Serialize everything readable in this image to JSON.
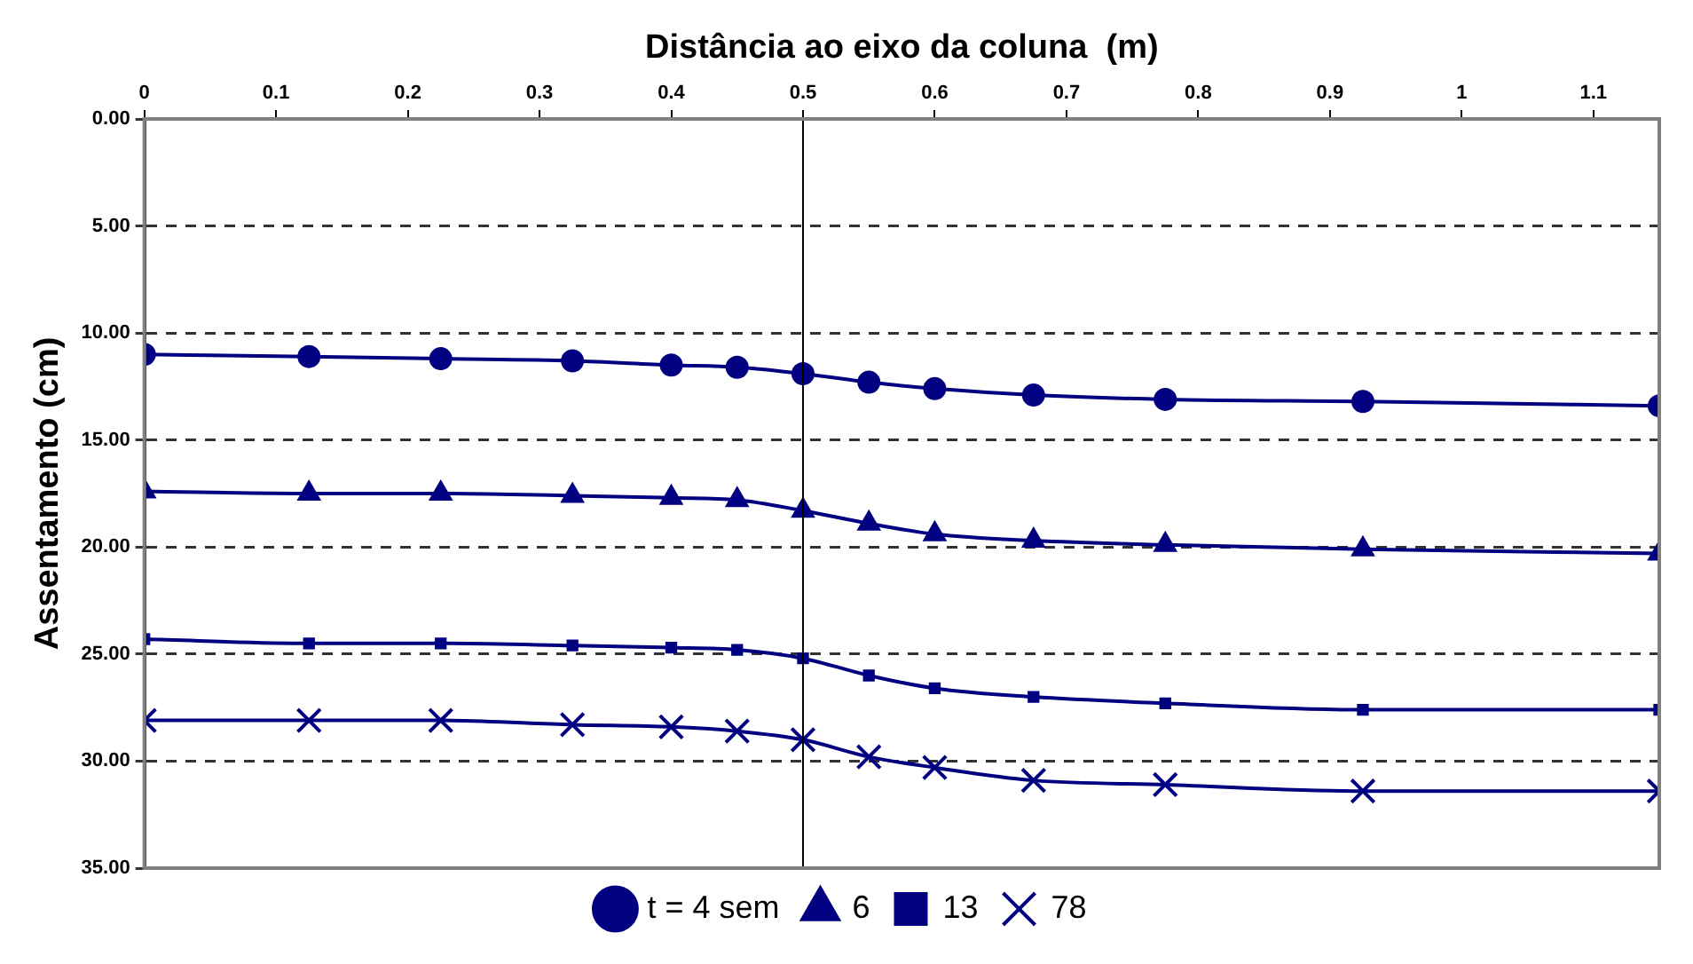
{
  "chart_data": {
    "type": "line",
    "xlabel": "Distância ao eixo da coluna  (m)",
    "ylabel": "Assentamento (cm)",
    "x": [
      0,
      0.125,
      0.225,
      0.325,
      0.4,
      0.45,
      0.5,
      0.55,
      0.6,
      0.675,
      0.775,
      0.925,
      1.15
    ],
    "xlim": [
      0,
      1.15
    ],
    "xticks": [
      0,
      0.1,
      0.2,
      0.3,
      0.4,
      0.5,
      0.6,
      0.7,
      0.8,
      0.9,
      1,
      1.1
    ],
    "ylim": [
      35,
      0
    ],
    "yticks": [
      {
        "value": 0,
        "label": "0.00"
      },
      {
        "value": 5,
        "label": "5.00"
      },
      {
        "value": 10,
        "label": "10.00"
      },
      {
        "value": 15,
        "label": "15.00"
      },
      {
        "value": 20,
        "label": "20.00"
      },
      {
        "value": 25,
        "label": "25.00"
      },
      {
        "value": 30,
        "label": "30.00"
      },
      {
        "value": 35,
        "label": "35.00"
      }
    ],
    "grid": "y",
    "legend": "bottom",
    "ref_lines": [
      {
        "axis": "x",
        "value": 0.5,
        "color": "#000000"
      }
    ],
    "series": [
      {
        "name": "t = 4 sem",
        "color": "#000080",
        "marker": "circle",
        "values": [
          11.0,
          11.1,
          11.2,
          11.3,
          11.5,
          11.6,
          11.9,
          12.3,
          12.6,
          12.9,
          13.1,
          13.2,
          13.4
        ]
      },
      {
        "name": "6",
        "color": "#000080",
        "marker": "triangle",
        "values": [
          17.4,
          17.5,
          17.5,
          17.6,
          17.7,
          17.8,
          18.3,
          18.9,
          19.4,
          19.7,
          19.9,
          20.1,
          20.3
        ]
      },
      {
        "name": "13",
        "color": "#000080",
        "marker": "square",
        "values": [
          24.3,
          24.5,
          24.5,
          24.6,
          24.7,
          24.8,
          25.2,
          26.0,
          26.6,
          27.0,
          27.3,
          27.6,
          27.6
        ]
      },
      {
        "name": "78",
        "color": "#000080",
        "marker": "cross",
        "values": [
          28.1,
          28.1,
          28.1,
          28.3,
          28.4,
          28.6,
          29.0,
          29.8,
          30.3,
          30.9,
          31.1,
          31.4,
          31.4
        ]
      }
    ]
  }
}
